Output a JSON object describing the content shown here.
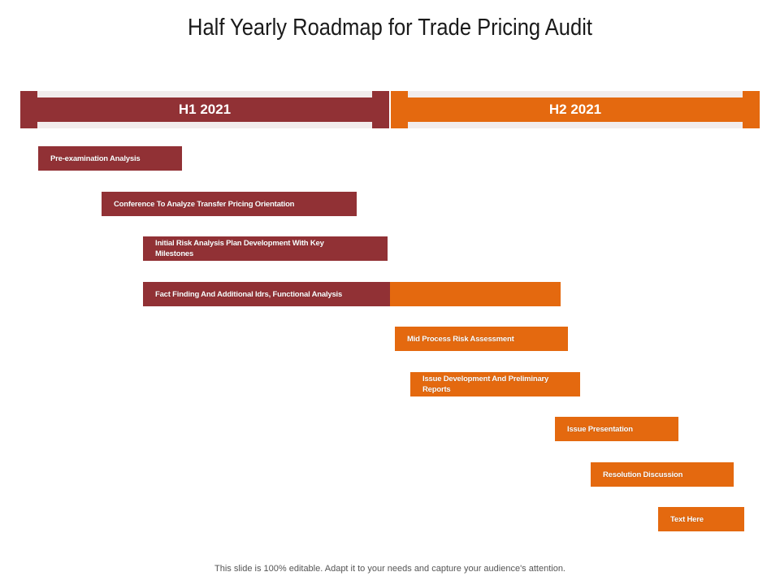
{
  "title": "Half Yearly Roadmap for Trade Pricing Audit",
  "periods": [
    {
      "label": "H1 2021",
      "color": "#913135"
    },
    {
      "label": "H2 2021",
      "color": "#e4690f"
    }
  ],
  "tasks": [
    {
      "label": "Pre-examination Analysis"
    },
    {
      "label": "Conference To Analyze Transfer Pricing Orientation"
    },
    {
      "label": "Initial Risk Analysis Plan Development With Key Milestones"
    },
    {
      "label": "Fact Finding And Additional Idrs, Functional Analysis"
    },
    {
      "label": "Mid Process Risk Assessment"
    },
    {
      "label": "Issue Development And Preliminary Reports"
    },
    {
      "label": "Issue Presentation"
    },
    {
      "label": "Resolution Discussion"
    },
    {
      "label": "Text Here"
    }
  ],
  "footer": "This slide is 100% editable. Adapt it to your needs and capture your audience's attention."
}
